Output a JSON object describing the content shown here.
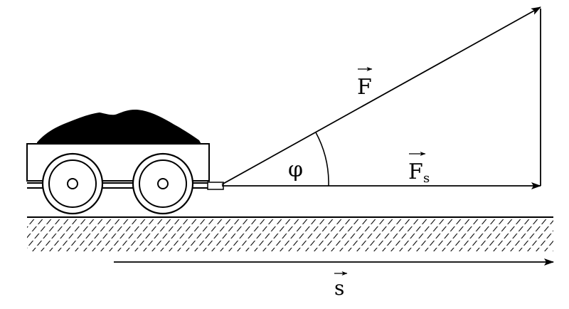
{
  "labels": {
    "force": "F",
    "force_component": "F",
    "component_subscript": "s",
    "angle": "φ",
    "displacement": "s"
  },
  "icons": {
    "cart": "cart-icon",
    "vector_arrow": "vector-arrow-icon"
  },
  "colors": {
    "ink": "#000000",
    "background": "#ffffff"
  }
}
